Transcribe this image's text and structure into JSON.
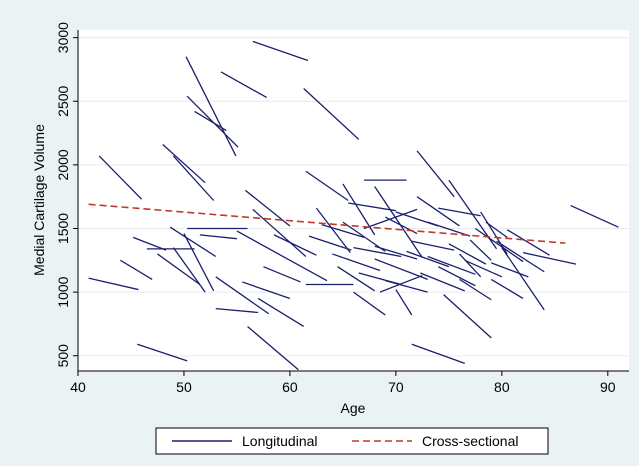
{
  "chart_data": {
    "type": "line",
    "title": "",
    "xlabel": "Age",
    "ylabel": "Medial Cartilage Volume",
    "xlim": [
      40,
      92
    ],
    "ylim": [
      380,
      3060
    ],
    "x_ticks": [
      "40",
      "50",
      "60",
      "70",
      "80",
      "90"
    ],
    "y_ticks": [
      "500",
      "1000",
      "1500",
      "2000",
      "2500",
      "3000"
    ],
    "grid": "horizontal",
    "legend_position": "bottom",
    "colors": {
      "longitudinal": "#1a1f6e",
      "cross_sectional": "#c0392b",
      "background": "#eaf2f3"
    },
    "series": [
      {
        "name": "Longitudinal",
        "style": "solid",
        "segments": [
          [
            [
              41.0,
              1110
            ],
            [
              45.7,
              1020
            ]
          ],
          [
            [
              42.0,
              2070
            ],
            [
              46.0,
              1730
            ]
          ],
          [
            [
              44.0,
              1250
            ],
            [
              47.0,
              1100
            ]
          ],
          [
            [
              45.2,
              1430
            ],
            [
              48.3,
              1330
            ]
          ],
          [
            [
              45.6,
              590
            ],
            [
              50.3,
              460
            ]
          ],
          [
            [
              46.5,
              1340
            ],
            [
              51.0,
              1340
            ]
          ],
          [
            [
              47.5,
              1300
            ],
            [
              51.5,
              1060
            ]
          ],
          [
            [
              48.0,
              2160
            ],
            [
              52.0,
              1860
            ]
          ],
          [
            [
              48.7,
              1510
            ],
            [
              53.0,
              1280
            ]
          ],
          [
            [
              49.0,
              2070
            ],
            [
              52.8,
              1720
            ]
          ],
          [
            [
              50.0,
              1460
            ],
            [
              52.8,
              1010
            ]
          ],
          [
            [
              49.0,
              1350
            ],
            [
              52.0,
              1000
            ]
          ],
          [
            [
              50.2,
              2850
            ],
            [
              54.9,
              2070
            ]
          ],
          [
            [
              50.3,
              2540
            ],
            [
              55.1,
              2140
            ]
          ],
          [
            [
              51.0,
              2420
            ],
            [
              54.0,
              2270
            ]
          ],
          [
            [
              50.3,
              1500
            ],
            [
              56.0,
              1500
            ]
          ],
          [
            [
              51.5,
              1450
            ],
            [
              55.0,
              1420
            ]
          ],
          [
            [
              53.0,
              1120
            ],
            [
              58.0,
              830
            ]
          ],
          [
            [
              53.0,
              870
            ],
            [
              57.0,
              840
            ]
          ],
          [
            [
              53.5,
              2730
            ],
            [
              57.8,
              2530
            ]
          ],
          [
            [
              55.0,
              1480
            ],
            [
              60.0,
              1250
            ]
          ],
          [
            [
              55.5,
              1080
            ],
            [
              60.0,
              950
            ]
          ],
          [
            [
              55.8,
              1800
            ],
            [
              60.0,
              1520
            ]
          ],
          [
            [
              56.0,
              730
            ],
            [
              60.8,
              390
            ]
          ],
          [
            [
              57.0,
              950
            ],
            [
              61.3,
              730
            ]
          ],
          [
            [
              56.5,
              1650
            ],
            [
              61.5,
              1280
            ]
          ],
          [
            [
              57.5,
              1200
            ],
            [
              61.0,
              1080
            ]
          ],
          [
            [
              56.5,
              2970
            ],
            [
              61.7,
              2820
            ]
          ],
          [
            [
              58.5,
              1450
            ],
            [
              62.5,
              1290
            ]
          ],
          [
            [
              60.0,
              1250
            ],
            [
              63.5,
              1090
            ]
          ],
          [
            [
              61.3,
              2600
            ],
            [
              66.5,
              2200
            ]
          ],
          [
            [
              61.5,
              1950
            ],
            [
              65.5,
              1720
            ]
          ],
          [
            [
              61.8,
              1440
            ],
            [
              65.8,
              1330
            ]
          ],
          [
            [
              62.5,
              1660
            ],
            [
              65.7,
              1310
            ]
          ],
          [
            [
              61.5,
              1060
            ],
            [
              66.0,
              1060
            ]
          ],
          [
            [
              63.0,
              1530
            ],
            [
              67.0,
              1430
            ]
          ],
          [
            [
              64.0,
              1300
            ],
            [
              68.5,
              1170
            ]
          ],
          [
            [
              64.5,
              1200
            ],
            [
              68.0,
              1010
            ]
          ],
          [
            [
              65.0,
              1850
            ],
            [
              68.0,
              1450
            ]
          ],
          [
            [
              65.5,
              1700
            ],
            [
              70.0,
              1640
            ]
          ],
          [
            [
              65.0,
              1550
            ],
            [
              69.0,
              1320
            ]
          ],
          [
            [
              66.0,
              1350
            ],
            [
              70.5,
              1280
            ]
          ],
          [
            [
              66.5,
              1150
            ],
            [
              70.5,
              1060
            ]
          ],
          [
            [
              66.0,
              1000
            ],
            [
              69.0,
              820
            ]
          ],
          [
            [
              67.0,
              1880
            ],
            [
              71.0,
              1880
            ]
          ],
          [
            [
              67.0,
              1500
            ],
            [
              72.0,
              1650
            ]
          ],
          [
            [
              68.0,
              1360
            ],
            [
              72.0,
              1260
            ]
          ],
          [
            [
              68.0,
              1260
            ],
            [
              73.0,
              1100
            ]
          ],
          [
            [
              68.5,
              1000
            ],
            [
              72.5,
              1130
            ]
          ],
          [
            [
              68.0,
              1830
            ],
            [
              72.5,
              1270
            ]
          ],
          [
            [
              69.0,
              1590
            ],
            [
              72.0,
              1460
            ]
          ],
          [
            [
              69.0,
              1090
            ],
            [
              73.0,
              1000
            ]
          ],
          [
            [
              70.0,
              1630
            ],
            [
              74.0,
              1520
            ]
          ],
          [
            [
              70.0,
              1020
            ],
            [
              71.5,
              820
            ]
          ],
          [
            [
              71.0,
              1320
            ],
            [
              75.0,
              1200
            ]
          ],
          [
            [
              71.5,
              1400
            ],
            [
              75.5,
              1330
            ]
          ],
          [
            [
              71.5,
              590
            ],
            [
              76.5,
              440
            ]
          ],
          [
            [
              72.0,
              1750
            ],
            [
              76.0,
              1520
            ]
          ],
          [
            [
              72.0,
              2110
            ],
            [
              75.5,
              1750
            ]
          ],
          [
            [
              72.3,
              1150
            ],
            [
              76.5,
              1010
            ]
          ],
          [
            [
              73.0,
              1550
            ],
            [
              77.0,
              1440
            ]
          ],
          [
            [
              73.0,
              1280
            ],
            [
              77.5,
              1140
            ]
          ],
          [
            [
              74.0,
              1660
            ],
            [
              78.0,
              1600
            ]
          ],
          [
            [
              74.0,
              1200
            ],
            [
              77.5,
              1050
            ]
          ],
          [
            [
              74.5,
              980
            ],
            [
              79.0,
              640
            ]
          ],
          [
            [
              75.0,
              1380
            ],
            [
              78.5,
              1220
            ]
          ],
          [
            [
              75.0,
              1880
            ],
            [
              79.5,
              1340
            ]
          ],
          [
            [
              76.0,
              1300
            ],
            [
              78.0,
              1120
            ]
          ],
          [
            [
              76.0,
              1100
            ],
            [
              79.0,
              940
            ]
          ],
          [
            [
              76.5,
              1250
            ],
            [
              80.0,
              1120
            ]
          ],
          [
            [
              77.0,
              1410
            ],
            [
              79.0,
              1250
            ]
          ],
          [
            [
              77.5,
              1500
            ],
            [
              82.0,
              1240
            ]
          ],
          [
            [
              78.0,
              1630
            ],
            [
              80.5,
              1300
            ]
          ],
          [
            [
              78.5,
              1550
            ],
            [
              80.5,
              1430
            ]
          ],
          [
            [
              79.0,
              1230
            ],
            [
              82.5,
              1120
            ]
          ],
          [
            [
              79.5,
              1400
            ],
            [
              84.0,
              1160
            ]
          ],
          [
            [
              79.0,
              1100
            ],
            [
              82.0,
              950
            ]
          ],
          [
            [
              80.0,
              1350
            ],
            [
              84.0,
              860
            ]
          ],
          [
            [
              80.5,
              1490
            ],
            [
              84.5,
              1290
            ]
          ],
          [
            [
              82.0,
              1310
            ],
            [
              87.0,
              1220
            ]
          ],
          [
            [
              86.5,
              1680
            ],
            [
              91.0,
              1510
            ]
          ]
        ]
      },
      {
        "name": "Cross-sectional",
        "style": "dashed",
        "x": [
          41,
          86
        ],
        "y": [
          1690,
          1385
        ]
      }
    ]
  }
}
